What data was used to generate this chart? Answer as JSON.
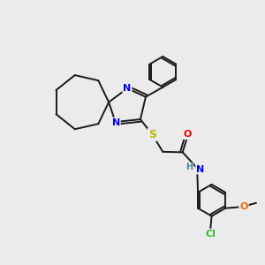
{
  "background_color": "#ebebeb",
  "bond_color": "#1a1a1a",
  "atom_colors": {
    "N": "#0000ee",
    "S": "#bbbb00",
    "O_carbonyl": "#ee0000",
    "O_methoxy": "#ee6600",
    "Cl": "#33bb33",
    "H": "#448899",
    "C": "#1a1a1a"
  },
  "font_size_atom": 8,
  "fig_width": 3.0,
  "fig_height": 3.0,
  "dpi": 100
}
